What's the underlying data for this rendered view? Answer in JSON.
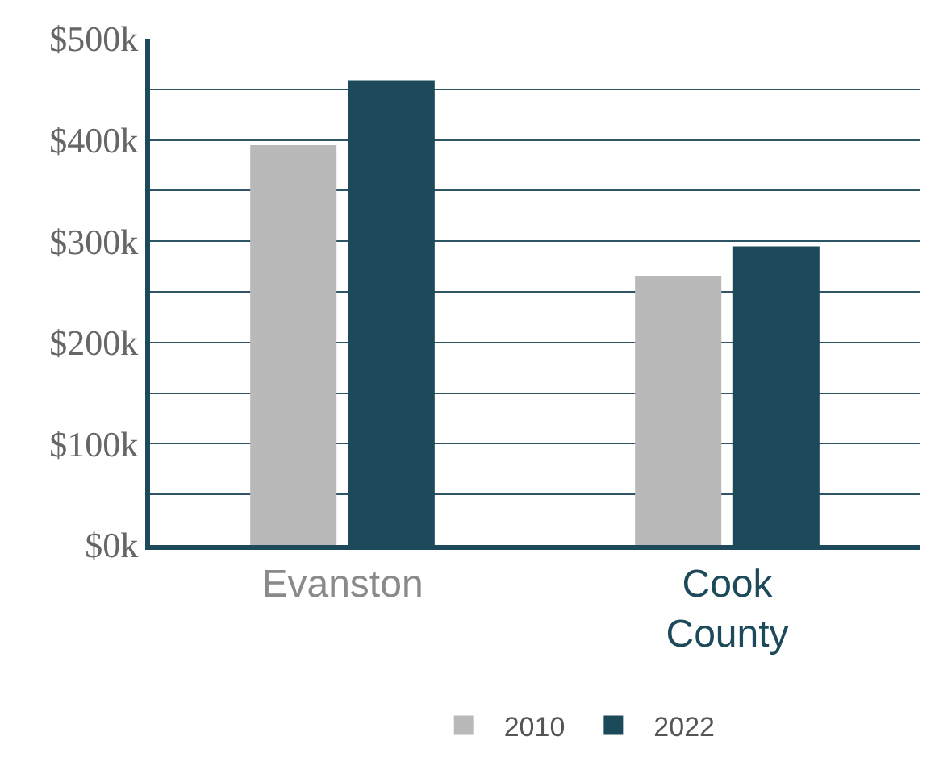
{
  "chart_data": {
    "type": "bar",
    "categories": [
      "Evanston",
      "Cook County"
    ],
    "series": [
      {
        "name": "2010",
        "color": "#b9b9b9",
        "values": [
          395000,
          266000
        ]
      },
      {
        "name": "2022",
        "color": "#1c4a5a",
        "values": [
          459000,
          295000
        ]
      }
    ],
    "ylim": [
      0,
      500000
    ],
    "yticks": [
      {
        "value": 0,
        "label": "$0k"
      },
      {
        "value": 50000,
        "label": null
      },
      {
        "value": 100000,
        "label": "$100k"
      },
      {
        "value": 150000,
        "label": null
      },
      {
        "value": 200000,
        "label": "$200k"
      },
      {
        "value": 250000,
        "label": null
      },
      {
        "value": 300000,
        "label": "$300k"
      },
      {
        "value": 350000,
        "label": null
      },
      {
        "value": 400000,
        "label": "$400k"
      },
      {
        "value": 450000,
        "label": null
      },
      {
        "value": 500000,
        "label": "$500k"
      }
    ],
    "grid": "y",
    "legend": "bottom"
  }
}
